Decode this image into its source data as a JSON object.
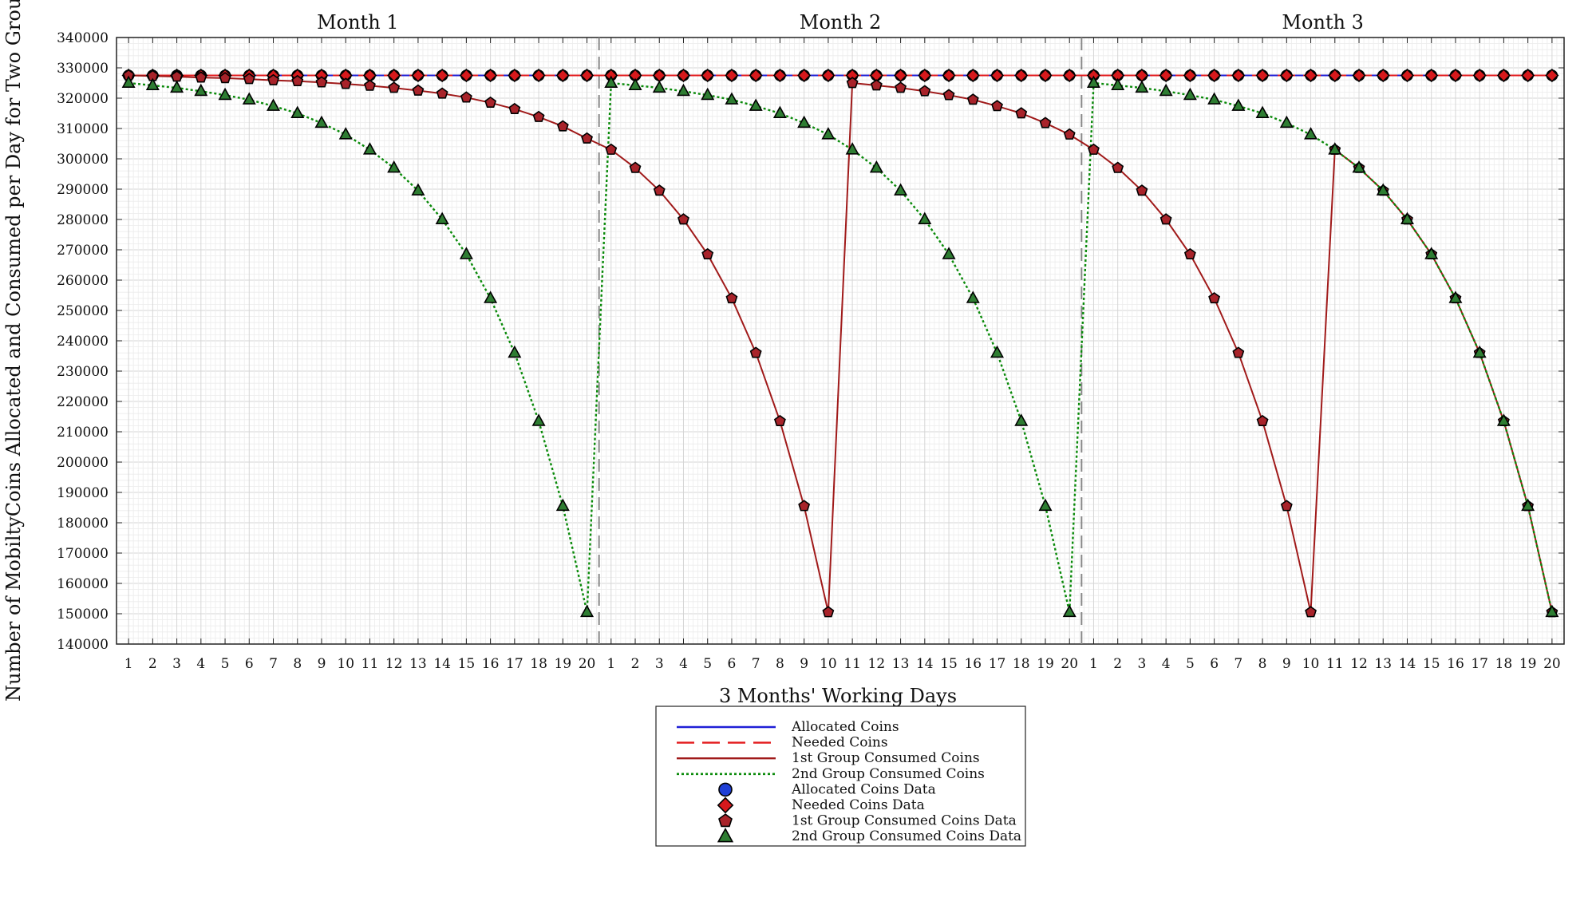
{
  "chart_data": {
    "type": "line",
    "panel_titles": [
      "Month 1",
      "Month 2",
      "Month 3"
    ],
    "xlabel": "3 Months' Working Days",
    "ylabel": "Number of MobiltyCoins Allocated and Consumed per Day for Two Groups",
    "ylim": [
      140000,
      340000
    ],
    "yticks": [
      140000,
      150000,
      160000,
      170000,
      180000,
      190000,
      200000,
      210000,
      220000,
      230000,
      240000,
      250000,
      260000,
      270000,
      280000,
      290000,
      300000,
      310000,
      320000,
      330000,
      340000
    ],
    "x_tick_labels": [
      "1",
      "2",
      "3",
      "4",
      "5",
      "6",
      "7",
      "8",
      "9",
      "10",
      "11",
      "12",
      "13",
      "14",
      "15",
      "16",
      "17",
      "18",
      "19",
      "20",
      "1",
      "2",
      "3",
      "4",
      "5",
      "6",
      "7",
      "8",
      "9",
      "10",
      "11",
      "12",
      "13",
      "14",
      "15",
      "16",
      "17",
      "18",
      "19",
      "20",
      "1",
      "2",
      "3",
      "4",
      "5",
      "6",
      "7",
      "8",
      "9",
      "10",
      "11",
      "12",
      "13",
      "14",
      "15",
      "16",
      "17",
      "18",
      "19",
      "20"
    ],
    "month_separators_after_day": [
      20,
      40
    ],
    "grid": true,
    "legend_position": "bottom-center",
    "series": [
      {
        "name": "Allocated Coins",
        "color": "#1f1fd6",
        "line_style": "solid",
        "marker": "circle",
        "marker_color": "#1f3fd6",
        "values": [
          327500,
          327500,
          327500,
          327500,
          327500,
          327500,
          327500,
          327500,
          327500,
          327500,
          327500,
          327500,
          327500,
          327500,
          327500,
          327500,
          327500,
          327500,
          327500,
          327500,
          327500,
          327500,
          327500,
          327500,
          327500,
          327500,
          327500,
          327500,
          327500,
          327500,
          327500,
          327500,
          327500,
          327500,
          327500,
          327500,
          327500,
          327500,
          327500,
          327500,
          327500,
          327500,
          327500,
          327500,
          327500,
          327500,
          327500,
          327500,
          327500,
          327500,
          327500,
          327500,
          327500,
          327500,
          327500,
          327500,
          327500,
          327500,
          327500,
          327500
        ]
      },
      {
        "name": "Needed Coins",
        "color": "#e31a1c",
        "line_style": "dashed",
        "marker": "diamond",
        "marker_color": "#d7191c",
        "values": [
          327500,
          327500,
          327500,
          327500,
          327500,
          327500,
          327500,
          327500,
          327500,
          327500,
          327500,
          327500,
          327500,
          327500,
          327500,
          327500,
          327500,
          327500,
          327500,
          327500,
          327500,
          327500,
          327500,
          327500,
          327500,
          327500,
          327500,
          327500,
          327500,
          327500,
          327500,
          327500,
          327500,
          327500,
          327500,
          327500,
          327500,
          327500,
          327500,
          327500,
          327500,
          327500,
          327500,
          327500,
          327500,
          327500,
          327500,
          327500,
          327500,
          327500,
          327500,
          327500,
          327500,
          327500,
          327500,
          327500,
          327500,
          327500,
          327500,
          327500
        ]
      },
      {
        "name": "1st Group Consumed Coins",
        "color": "#a01a1a",
        "line_style": "solid",
        "marker": "pentagon",
        "marker_color": "#a8232a",
        "values": [
          327500,
          327300,
          327100,
          326800,
          326600,
          326300,
          325900,
          325600,
          325200,
          324700,
          324100,
          323400,
          322500,
          321500,
          320200,
          318500,
          316400,
          313800,
          310700,
          306700,
          303000,
          297000,
          289500,
          280000,
          268500,
          254000,
          236000,
          213500,
          185500,
          150500,
          325000,
          324200,
          323400,
          322300,
          321000,
          319500,
          317400,
          315000,
          311800,
          308000,
          303000,
          297000,
          289500,
          280000,
          268500,
          254000,
          236000,
          213500,
          185500,
          150500,
          303000,
          297000,
          289500,
          280000,
          268500,
          254000,
          236000,
          213500,
          185500,
          150500
        ]
      },
      {
        "name": "2nd Group Consumed Coins",
        "color": "#0a8a0a",
        "line_style": "dotted",
        "marker": "triangle",
        "marker_color": "#2e7d32",
        "values": [
          325000,
          324200,
          323400,
          322300,
          321000,
          319500,
          317400,
          315000,
          311800,
          308000,
          303000,
          297000,
          289500,
          280000,
          268500,
          254000,
          236000,
          213500,
          185500,
          150500,
          325000,
          324200,
          323400,
          322300,
          321000,
          319500,
          317400,
          315000,
          311800,
          308000,
          303000,
          297000,
          289500,
          280000,
          268500,
          254000,
          236000,
          213500,
          185500,
          150500,
          325000,
          324200,
          323400,
          322300,
          321000,
          319500,
          317400,
          315000,
          311800,
          308000,
          303000,
          297000,
          289500,
          280000,
          268500,
          254000,
          236000,
          213500,
          185500,
          150500
        ]
      }
    ],
    "legend_entries": [
      {
        "label": "Allocated Coins",
        "kind": "line",
        "series": 0
      },
      {
        "label": "Needed Coins",
        "kind": "line",
        "series": 1
      },
      {
        "label": "1st Group Consumed Coins",
        "kind": "line",
        "series": 2
      },
      {
        "label": "2nd Group Consumed Coins",
        "kind": "line",
        "series": 3
      },
      {
        "label": "Allocated Coins Data",
        "kind": "marker",
        "series": 0
      },
      {
        "label": "Needed Coins Data",
        "kind": "marker",
        "series": 1
      },
      {
        "label": "1st Group Consumed Coins Data",
        "kind": "marker",
        "series": 2
      },
      {
        "label": "2nd Group Consumed Coins Data",
        "kind": "marker",
        "series": 3
      }
    ]
  }
}
